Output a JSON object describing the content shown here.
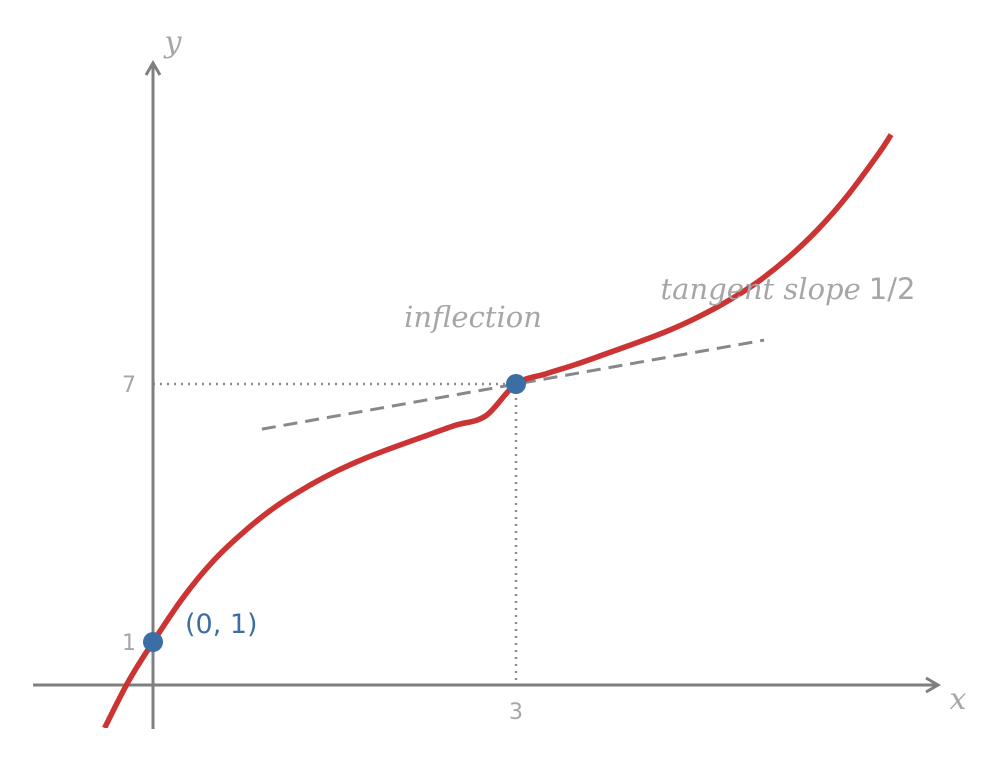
{
  "chart_data": {
    "type": "line",
    "xlabel": "x",
    "ylabel": "y",
    "xlim": [
      -0.33,
      6.5
    ],
    "ylim": [
      -0.8,
      14.3
    ],
    "x_ticks": [
      {
        "value": 3,
        "label": "3"
      }
    ],
    "y_ticks": [
      {
        "value": 1,
        "label": "1"
      },
      {
        "value": 7,
        "label": "7"
      }
    ],
    "grid": false,
    "colors": {
      "curve": "#cc3333",
      "points": "#3a6ea5",
      "axis": "#7f7f7f",
      "muted": "#a6a6a6",
      "tangent": "#888888"
    },
    "series": [
      {
        "kind": "curve",
        "x": [
          -0.4,
          -0.2,
          0,
          0.25,
          0.5,
          0.75,
          1.0,
          1.25,
          1.5,
          1.75,
          2.0,
          2.25,
          2.5,
          2.75,
          3.0,
          3.25,
          3.5,
          3.75,
          4.0,
          4.25,
          4.5,
          4.75,
          5.0,
          5.25,
          5.5,
          5.75,
          6.0,
          6.1
        ],
        "y": [
          -1.0,
          0.1,
          1.0,
          2.04,
          2.89,
          3.56,
          4.12,
          4.57,
          4.95,
          5.27,
          5.54,
          5.79,
          6.04,
          6.26,
          7.0,
          7.24,
          7.46,
          7.71,
          7.96,
          8.23,
          8.55,
          8.93,
          9.38,
          9.94,
          10.61,
          11.42,
          12.37,
          12.8
        ]
      },
      {
        "kind": "tangent",
        "x": [
          0.9,
          5.05
        ],
        "y": [
          5.95,
          8.02
        ]
      }
    ],
    "points": [
      {
        "x": 0,
        "y": 1,
        "label": "(0, 1)"
      },
      {
        "x": 3,
        "y": 7,
        "label": ""
      }
    ],
    "guides": [
      {
        "from": [
          0,
          7
        ],
        "to": [
          3,
          7
        ]
      },
      {
        "from": [
          3,
          7
        ],
        "to": [
          3,
          0
        ]
      }
    ],
    "annotations": {
      "inflection": "inflection",
      "tangent_word": "tangent slope",
      "tangent_value": "1/2",
      "tangent_anchor": [
        4.2,
        8.9
      ]
    }
  }
}
